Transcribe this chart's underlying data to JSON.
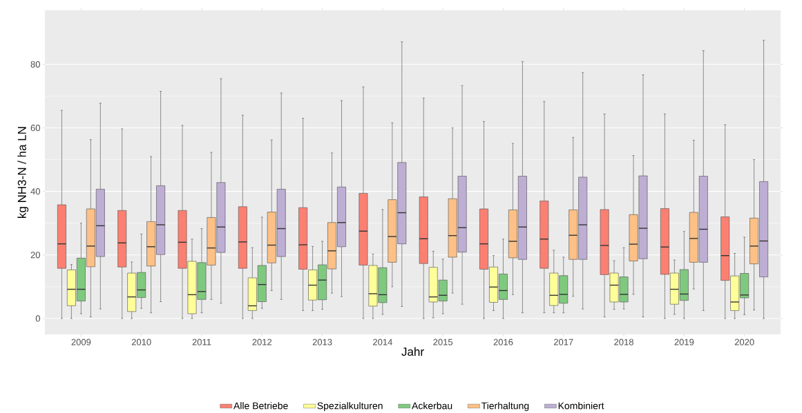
{
  "chart_data": {
    "type": "box",
    "xlabel": "Jahr",
    "ylabel": "kg NH3-N / ha LN",
    "categories": [
      "2009",
      "2010",
      "2011",
      "2012",
      "2013",
      "2014",
      "2015",
      "2016",
      "2017",
      "2018",
      "2019",
      "2020"
    ],
    "ylim": [
      -5,
      97
    ],
    "yticks": [
      0,
      20,
      40,
      60,
      80
    ],
    "grid": "y",
    "legend": "bottom",
    "series": [
      {
        "name": "Alle Betriebe",
        "color": "#fb8072",
        "boxes": [
          {
            "low": 0,
            "q1": 15.8,
            "median": 23.5,
            "q3": 35.8,
            "high": 65.5
          },
          {
            "low": 0,
            "q1": 16.2,
            "median": 23.8,
            "q3": 34,
            "high": 59.7
          },
          {
            "low": 0,
            "q1": 15.8,
            "median": 24,
            "q3": 34,
            "high": 60.8
          },
          {
            "low": 0,
            "q1": 15.8,
            "median": 24.1,
            "q3": 35.2,
            "high": 64
          },
          {
            "low": 2.5,
            "q1": 15.5,
            "median": 23.2,
            "q3": 34.9,
            "high": 63
          },
          {
            "low": 0,
            "q1": 16.8,
            "median": 27.5,
            "q3": 39.4,
            "high": 72.9
          },
          {
            "low": 0,
            "q1": 17.3,
            "median": 25.1,
            "q3": 38.3,
            "high": 69.4
          },
          {
            "low": 0,
            "q1": 15.5,
            "median": 23.5,
            "q3": 34.5,
            "high": 62
          },
          {
            "low": 1.8,
            "q1": 15.8,
            "median": 25,
            "q3": 37,
            "high": 68.3
          },
          {
            "low": 0.5,
            "q1": 13.8,
            "median": 23,
            "q3": 34.3,
            "high": 64.4
          },
          {
            "low": 0,
            "q1": 13.9,
            "median": 22.5,
            "q3": 34.6,
            "high": 64.4
          },
          {
            "low": 0,
            "q1": 12,
            "median": 19.8,
            "q3": 32,
            "high": 61
          }
        ]
      },
      {
        "name": "Spezialkulturen",
        "color": "#ffff99",
        "boxes": [
          {
            "low": 0,
            "q1": 4,
            "median": 9.2,
            "q3": 15.3,
            "high": 17
          },
          {
            "low": 0,
            "q1": 2.2,
            "median": 6.8,
            "q3": 14.3,
            "high": 17.8
          },
          {
            "low": 0,
            "q1": 1.5,
            "median": 7.5,
            "q3": 18,
            "high": 25
          },
          {
            "low": 0,
            "q1": 2.5,
            "median": 4,
            "q3": 12.8,
            "high": 22.3
          },
          {
            "low": 2.5,
            "q1": 5.8,
            "median": 10.5,
            "q3": 15.3,
            "high": 22.7
          },
          {
            "low": 0,
            "q1": 3.9,
            "median": 7.8,
            "q3": 16.7,
            "high": 20.3
          },
          {
            "low": 0.2,
            "q1": 5.2,
            "median": 6.8,
            "q3": 16.1,
            "high": 21.2
          },
          {
            "low": 2.5,
            "q1": 5.1,
            "median": 9.9,
            "q3": 16.2,
            "high": 19.8
          },
          {
            "low": 1.8,
            "q1": 4.1,
            "median": 7.3,
            "q3": 14.3,
            "high": 21.5
          },
          {
            "low": 2.9,
            "q1": 5.2,
            "median": 10.5,
            "q3": 14.3,
            "high": 18.2
          },
          {
            "low": 1.3,
            "q1": 4.5,
            "median": 9.2,
            "q3": 14.3,
            "high": 18.4
          },
          {
            "low": 0,
            "q1": 2.5,
            "median": 5.2,
            "q3": 13.4,
            "high": 20.5
          }
        ]
      },
      {
        "name": "Ackerbau",
        "color": "#7fc97f",
        "boxes": [
          {
            "low": 1.5,
            "q1": 5.5,
            "median": 9.2,
            "q3": 19,
            "high": 30
          },
          {
            "low": 3.2,
            "q1": 6.6,
            "median": 9,
            "q3": 14.5,
            "high": 26.6
          },
          {
            "low": 1.8,
            "q1": 6,
            "median": 8.5,
            "q3": 17.6,
            "high": 28.3
          },
          {
            "low": 3.2,
            "q1": 5.3,
            "median": 10.7,
            "q3": 16.7,
            "high": 31.9
          },
          {
            "low": 2.9,
            "q1": 5.9,
            "median": 12.1,
            "q3": 16.9,
            "high": 24.3
          },
          {
            "low": 1.3,
            "q1": 5,
            "median": 7.5,
            "q3": 16,
            "high": 34.3
          },
          {
            "low": 1.5,
            "q1": 5.5,
            "median": 7.3,
            "q3": 12.1,
            "high": 18.7
          },
          {
            "low": 0,
            "q1": 6,
            "median": 8.8,
            "q3": 14,
            "high": 25
          },
          {
            "low": 1.8,
            "q1": 4.8,
            "median": 7.6,
            "q3": 13.5,
            "high": 19.3
          },
          {
            "low": 3,
            "q1": 5.2,
            "median": 7.6,
            "q3": 13.1,
            "high": 22.3
          },
          {
            "low": 0,
            "q1": 5.7,
            "median": 7.7,
            "q3": 15.4,
            "high": 27.4
          },
          {
            "low": 1.2,
            "q1": 6.5,
            "median": 7.4,
            "q3": 14.2,
            "high": 25.6
          }
        ]
      },
      {
        "name": "Tierhaltung",
        "color": "#fdc086",
        "boxes": [
          {
            "low": 0.5,
            "q1": 16.3,
            "median": 22.8,
            "q3": 34.5,
            "high": 56.3
          },
          {
            "low": 1.8,
            "q1": 16.5,
            "median": 22.6,
            "q3": 30.5,
            "high": 51
          },
          {
            "low": 6,
            "q1": 16.8,
            "median": 22.2,
            "q3": 31.8,
            "high": 52.3
          },
          {
            "low": 8.8,
            "q1": 17.5,
            "median": 23.1,
            "q3": 33.5,
            "high": 56.2
          },
          {
            "low": 8,
            "q1": 15.6,
            "median": 21.3,
            "q3": 30.2,
            "high": 52.1
          },
          {
            "low": 10,
            "q1": 17.7,
            "median": 25.8,
            "q3": 37.4,
            "high": 61.6
          },
          {
            "low": 8,
            "q1": 19.3,
            "median": 26.1,
            "q3": 37.7,
            "high": 60
          },
          {
            "low": 7.5,
            "q1": 19.1,
            "median": 24.3,
            "q3": 34.2,
            "high": 55.1
          },
          {
            "low": 7,
            "q1": 18.6,
            "median": 26.2,
            "q3": 34.2,
            "high": 57
          },
          {
            "low": 7.6,
            "q1": 18.1,
            "median": 23.4,
            "q3": 32.7,
            "high": 51.3
          },
          {
            "low": 9.3,
            "q1": 17.7,
            "median": 25.2,
            "q3": 33.4,
            "high": 56.1
          },
          {
            "low": 2.7,
            "q1": 17.2,
            "median": 22.8,
            "q3": 31.6,
            "high": 50
          }
        ]
      },
      {
        "name": "Kombiniert",
        "color": "#beaed4",
        "boxes": [
          {
            "low": 3,
            "q1": 19.5,
            "median": 29.2,
            "q3": 40.7,
            "high": 67.8
          },
          {
            "low": 5.3,
            "q1": 20.1,
            "median": 29.5,
            "q3": 41.8,
            "high": 71.5
          },
          {
            "low": 4.8,
            "q1": 20.8,
            "median": 28.8,
            "q3": 42.8,
            "high": 75.5
          },
          {
            "low": 6,
            "q1": 19.5,
            "median": 28.3,
            "q3": 40.7,
            "high": 71
          },
          {
            "low": 6.9,
            "q1": 22.6,
            "median": 30.2,
            "q3": 41.4,
            "high": 68.6
          },
          {
            "low": 3.8,
            "q1": 23.5,
            "median": 33.3,
            "q3": 49.1,
            "high": 87.1
          },
          {
            "low": 4.5,
            "q1": 20.9,
            "median": 28.6,
            "q3": 44.8,
            "high": 73.3
          },
          {
            "low": 1.8,
            "q1": 18.6,
            "median": 28.8,
            "q3": 44.8,
            "high": 80.9
          },
          {
            "low": 3,
            "q1": 18.6,
            "median": 29.5,
            "q3": 44.5,
            "high": 77.4
          },
          {
            "low": 0.5,
            "q1": 18.8,
            "median": 28.4,
            "q3": 44.9,
            "high": 76.7
          },
          {
            "low": 2.5,
            "q1": 17.7,
            "median": 28.1,
            "q3": 44.8,
            "high": 84.3
          },
          {
            "low": 0,
            "q1": 13.1,
            "median": 24.4,
            "q3": 43.1,
            "high": 87.6
          }
        ]
      }
    ]
  }
}
